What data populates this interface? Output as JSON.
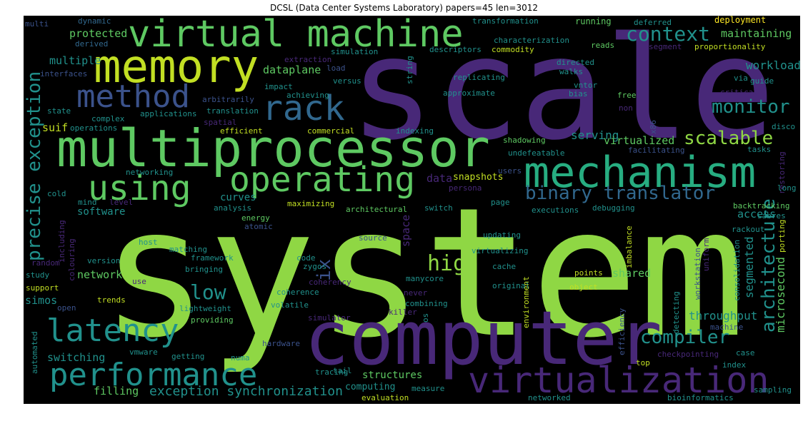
{
  "title": "DCSL (Data Center Systems Laboratory) papers=45 len=3012",
  "words": {
    "system": "system",
    "scale": "scale",
    "computer": "computer",
    "multiprocessor": "multiprocessor",
    "mechanism": "mechanism",
    "memory": "memory",
    "virtual_machine": "virtual machine",
    "virtualization": "virtualization",
    "performance": "performance",
    "operating": "operating",
    "latency": "latency",
    "using": "using",
    "method": "method",
    "rack": "rack",
    "binary_translator": "binary translator",
    "precise_exception": "precise exception",
    "context": "context",
    "monitor": "monitor",
    "scalable": "scalable",
    "architecture": "architecture",
    "compiler": "compiler",
    "high": "high",
    "low": "low",
    "exception_synchronization": "exception synchronization",
    "ix": "ix",
    "microsecond": "microsecond",
    "segmented": "segmented",
    "throughput": "throughput",
    "dataplane": "dataplane",
    "workload": "workload",
    "maintaining": "maintaining",
    "protected": "protected",
    "multiple": "multiple",
    "serving": "serving",
    "virtualized": "virtualized",
    "access": "access",
    "curves": "curves",
    "software": "software",
    "network": "network",
    "shared": "shared",
    "simos": "simos",
    "switching": "switching",
    "filling": "filling",
    "structures": "structures",
    "computing": "computing",
    "suif": "suif",
    "data": "data",
    "snapshots": "snapshots",
    "space": "space",
    "deployment": "deployment",
    "running": "running",
    "transformation": "transformation",
    "deferred": "deferred",
    "dynamic": "dynamic",
    "multi": "multi",
    "derived": "derived",
    "characterization": "characterization",
    "commodity": "commodity",
    "reads": "reads",
    "proportionality": "proportionality",
    "segment": "segment",
    "extraction": "extraction",
    "simulation": "simulation",
    "descriptors": "descriptors",
    "directed": "directed",
    "walks": "walks",
    "interfaces": "interfaces",
    "load": "load",
    "string": "string",
    "replicating": "replicating",
    "vntor": "vntor",
    "critical": "critical",
    "guide": "guide",
    "via": "via",
    "impact": "impact",
    "versus": "versus",
    "achieving": "achieving",
    "approximate": "approximate",
    "bias": "bias",
    "free": "free",
    "arbitrarily": "arbitrarily",
    "state": "state",
    "complex": "complex",
    "applications": "applications",
    "translation": "translation",
    "non": "non",
    "spatial": "spatial",
    "operations": "operations",
    "efficient": "efficient",
    "commercial": "commercial",
    "indexing": "indexing",
    "x86": "x86",
    "disco": "disco",
    "tasks": "tasks",
    "facilitating": "facilitating",
    "shadowing": "shadowing",
    "undefeatable": "undefeatable",
    "restoring": "restoring",
    "long": "long",
    "networking": "networking",
    "users": "users",
    "persona": "persona",
    "cold": "cold",
    "mind": "mind",
    "level": "level",
    "maximizing": "maximizing",
    "analysis": "analysis",
    "energy": "energy",
    "atomic": "atomic",
    "architectural": "architectural",
    "switch": "switch",
    "page": "page",
    "executions": "executions",
    "debugging": "debugging",
    "backtracking": "backtracking",
    "sabres": "sabres",
    "including": "including",
    "source": "source",
    "updating": "updating",
    "rackout": "rackout",
    "porting": "porting",
    "host": "host",
    "matching": "matching",
    "framework": "framework",
    "version": "version",
    "random": "random",
    "colouring": "colouring",
    "bringing": "bringing",
    "code": "code",
    "zygos": "zygos",
    "manycore": "manycore",
    "virtualizing": "virtualizing",
    "cache": "cache",
    "imbalance": "imbalance",
    "uniform": "uniform",
    "workstation": "workstation",
    "consolidation": "consolidation",
    "study": "study",
    "use": "use",
    "coherency": "coherency",
    "points": "points",
    "object": "object",
    "support": "support",
    "trends": "trends",
    "coherence": "coherence",
    "never": "never",
    "original": "original",
    "environment": "environment",
    "open": "open",
    "lightweight": "lightweight",
    "volatile": "volatile",
    "combining": "combining",
    "killer": "killer",
    "os": "os",
    "efficiency": "efficiency",
    "detecting": "detecting",
    "providing": "providing",
    "simulator": "simulator",
    "machine": "machine",
    "hardware": "hardware",
    "automated": "automated",
    "vmware": "vmware",
    "getting": "getting",
    "numa": "numa",
    "checkpointing": "checkpointing",
    "case": "case",
    "index": "index",
    "tracing": "tracing",
    "tail": "tail",
    "top": "top",
    "measure": "measure",
    "sampling": "sampling",
    "evaluation": "evaluation",
    "networked": "networked",
    "bioinformatics": "bioinformatics"
  },
  "colors": {
    "lime": "#8fd744",
    "green": "#5ec962",
    "teal": "#21918c",
    "teal2": "#2a9d8a",
    "blue": "#31688e",
    "indigo": "#3b528b",
    "purple": "#482878",
    "purple2": "#440154",
    "yellow": "#fde725",
    "yellow2": "#c2df23",
    "aqua": "#27ad81"
  }
}
